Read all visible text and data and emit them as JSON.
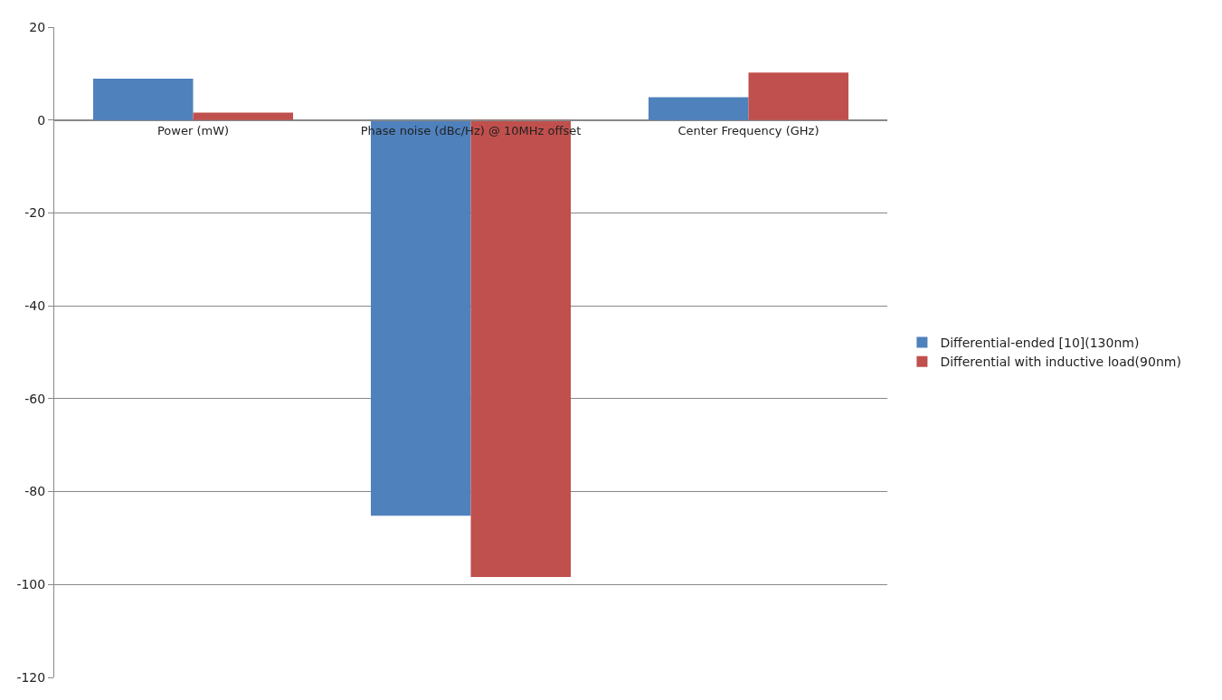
{
  "chart_data": {
    "type": "bar",
    "categories": [
      "Power (mW)",
      "Phase noise (dBc/Hz) @ 10MHz offset",
      "Center Frequency (GHz)"
    ],
    "series": [
      {
        "name": "Differential-ended [10](130nm)",
        "color": "#4f81bd",
        "values": [
          8.9,
          -85.2,
          4.9
        ]
      },
      {
        "name": "Differential with inductive load(90nm)",
        "color": "#c0504d",
        "values": [
          1.6,
          -98.4,
          10.2
        ]
      }
    ],
    "ylim": [
      -120,
      20
    ],
    "yticks": [
      -120,
      -100,
      -80,
      -60,
      -40,
      -20,
      0,
      20
    ],
    "grid": "y",
    "legend": "right"
  }
}
